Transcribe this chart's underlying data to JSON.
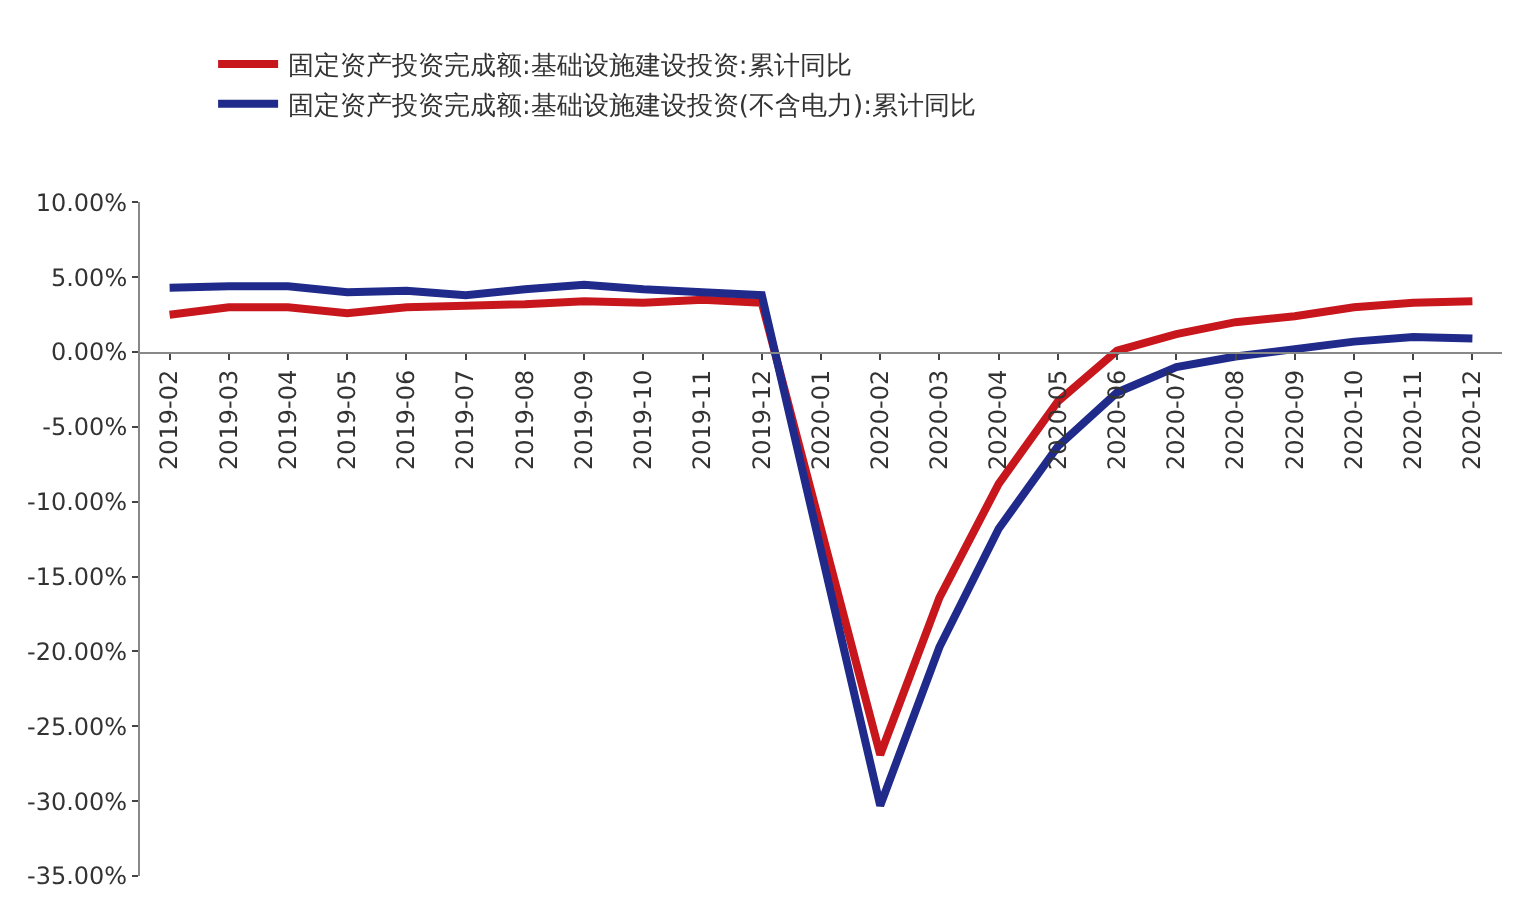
{
  "chart_data": {
    "type": "line",
    "categories": [
      "2019-02",
      "2019-03",
      "2019-04",
      "2019-05",
      "2019-06",
      "2019-07",
      "2019-08",
      "2019-09",
      "2019-10",
      "2019-11",
      "2019-12",
      "2020-01",
      "2020-02",
      "2020-03",
      "2020-04",
      "2020-05",
      "2020-06",
      "2020-07",
      "2020-08",
      "2020-09",
      "2020-10",
      "2020-11",
      "2020-12"
    ],
    "series": [
      {
        "name": "固定资产投资完成额:基础设施建设投资:累计同比",
        "color": "#c8161d",
        "values": [
          2.5,
          3.0,
          3.0,
          2.6,
          3.0,
          3.1,
          3.2,
          3.4,
          3.3,
          3.5,
          3.3,
          null,
          -26.9,
          -16.4,
          -8.8,
          -3.3,
          0.1,
          1.2,
          2.0,
          2.4,
          3.0,
          3.3,
          3.4
        ]
      },
      {
        "name": "固定资产投资完成额:基础设施建设投资(不含电力):累计同比",
        "color": "#1f2a8a",
        "values": [
          4.3,
          4.4,
          4.4,
          4.0,
          4.1,
          3.8,
          4.2,
          4.5,
          4.2,
          4.0,
          3.8,
          null,
          -30.3,
          -19.7,
          -11.8,
          -6.3,
          -2.7,
          -1.0,
          -0.3,
          0.2,
          0.7,
          1.0,
          0.9
        ]
      }
    ],
    "ylim": [
      -35,
      10
    ],
    "yticks": [
      {
        "value": 10,
        "label": "10.00%"
      },
      {
        "value": 5,
        "label": "5.00%"
      },
      {
        "value": 0,
        "label": "0.00%"
      },
      {
        "value": -5,
        "label": "-5.00%"
      },
      {
        "value": -10,
        "label": "-10.00%"
      },
      {
        "value": -15,
        "label": "-15.00%"
      },
      {
        "value": -20,
        "label": "-20.00%"
      },
      {
        "value": -25,
        "label": "-25.00%"
      },
      {
        "value": -30,
        "label": "-30.00%"
      },
      {
        "value": -35,
        "label": "-35.00%"
      }
    ],
    "legend": "top left",
    "marker": "none",
    "line_style": "solid"
  }
}
